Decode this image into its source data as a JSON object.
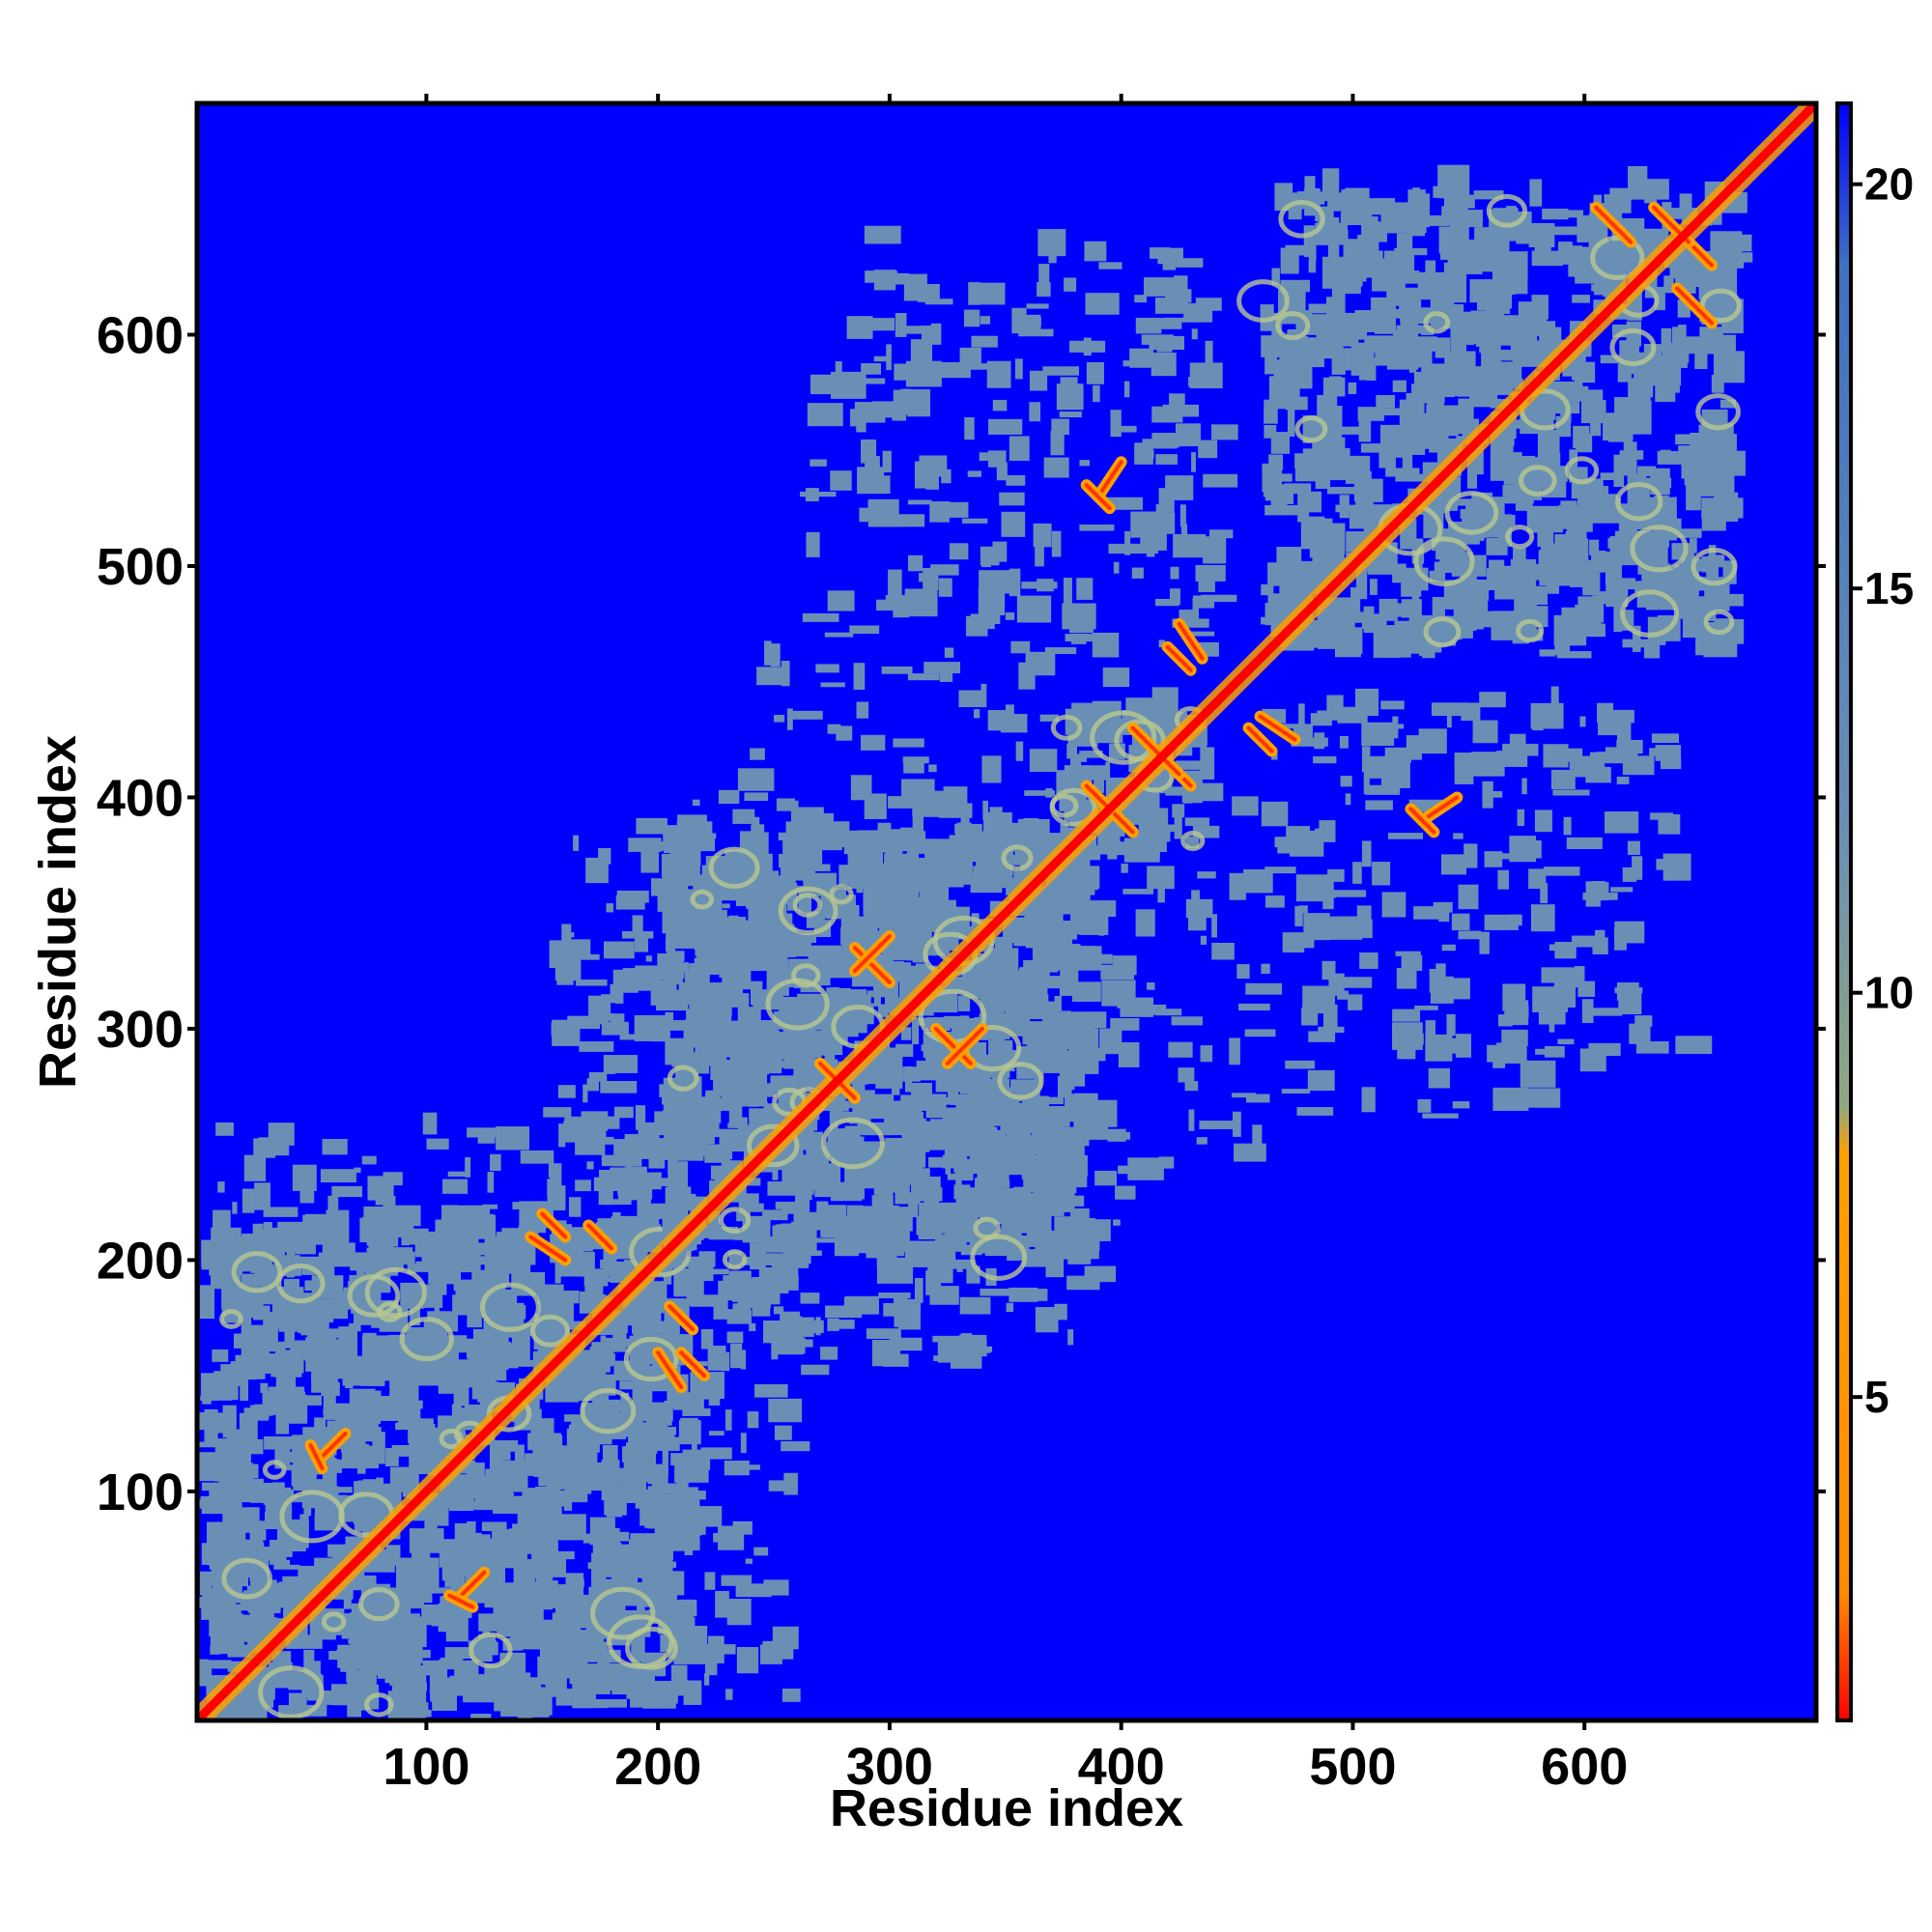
{
  "chart_data": {
    "type": "heatmap",
    "title": "",
    "xlabel": "Residue index",
    "ylabel": "Residue index",
    "xlim": [
      1,
      700
    ],
    "ylim": [
      1,
      700
    ],
    "x_ticks": [
      100,
      200,
      300,
      400,
      500,
      600
    ],
    "y_ticks": [
      100,
      200,
      300,
      400,
      500,
      600
    ],
    "colorbar": {
      "range": [
        1,
        21
      ],
      "ticks": [
        5,
        10,
        15,
        20
      ],
      "colors": [
        "#ff0000",
        "#ff8c00",
        "#ffa000",
        "#90a880",
        "#6a8fb5",
        "#4070c0",
        "#0000ff"
      ]
    },
    "background_color": "#0000ff",
    "contact_color": "#6a8fb5",
    "close_contact_color": "#ffa000",
    "diagonal_color": "#ff0000",
    "domains": [
      {
        "start": 1,
        "end": 210
      },
      {
        "start": 200,
        "end": 380
      },
      {
        "start": 375,
        "end": 435
      },
      {
        "start": 460,
        "end": 660
      }
    ],
    "interdomain_blocks": [
      {
        "x": [
          1,
          260
        ],
        "y": [
          1,
          250
        ]
      },
      {
        "x": [
          150,
          380
        ],
        "y": [
          150,
          390
        ]
      },
      {
        "x": [
          180,
          460
        ],
        "y": [
          230,
          400
        ]
      },
      {
        "x": [
          260,
          440
        ],
        "y": [
          460,
          620
        ]
      },
      {
        "x": [
          460,
          640
        ],
        "y": [
          280,
          440
        ]
      }
    ],
    "close_contact_segments": [
      {
        "x": [
          395,
          405
        ],
        "y": [
          395,
          385
        ],
        "label": ""
      },
      {
        "x": [
          410,
          430
        ],
        "y": [
          425,
          405
        ]
      },
      {
        "x": [
          270,
          285
        ],
        "y": [
          285,
          270
        ]
      },
      {
        "x": [
          285,
          300
        ],
        "y": [
          335,
          320
        ]
      },
      {
        "x": [
          325,
          340
        ],
        "y": [
          285,
          300
        ]
      },
      {
        "x": [
          605,
          620
        ],
        "y": [
          655,
          640
        ]
      },
      {
        "x": [
          640,
          655
        ],
        "y": [
          645,
          630
        ]
      },
      {
        "x": [
          460,
          475
        ],
        "y": [
          435,
          425
        ]
      },
      {
        "x": [
          530,
          545
        ],
        "y": [
          390,
          400
        ]
      },
      {
        "x": [
          145,
          160
        ],
        "y": [
          210,
          200
        ]
      },
      {
        "x": [
          205,
          215
        ],
        "y": [
          180,
          170
        ]
      },
      {
        "x": [
          210,
          220
        ],
        "y": [
          160,
          150
        ]
      },
      {
        "x": [
          55,
          65
        ],
        "y": [
          115,
          125
        ]
      },
      {
        "x": [
          110,
          120
        ],
        "y": [
          55,
          50
        ]
      },
      {
        "x": [
          420,
          430
        ],
        "y": [
          465,
          455
        ]
      },
      {
        "x": [
          385,
          395
        ],
        "y": [
          535,
          525
        ]
      }
    ]
  }
}
